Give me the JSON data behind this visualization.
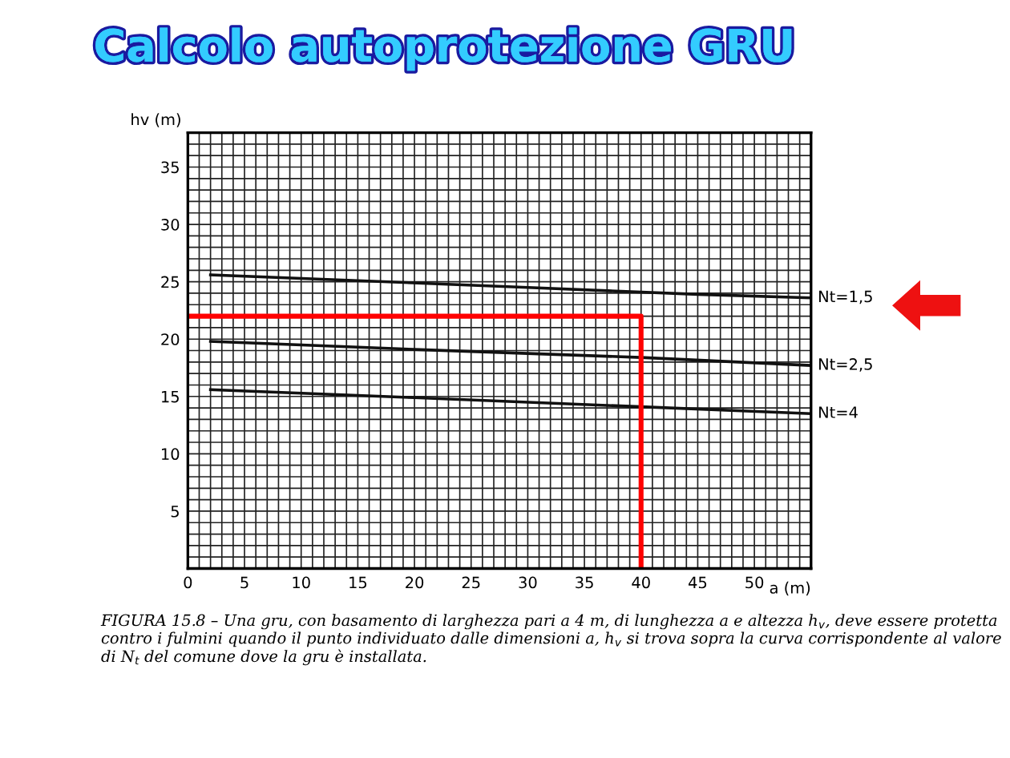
{
  "chart_data": {
    "type": "line",
    "title": "Calcolo autoprotezione GRU",
    "xlabel": "a (m)",
    "ylabel": "hv (m)",
    "series": [
      {
        "name": "Nt=1,5",
        "color": "#111111",
        "x": [
          2,
          15,
          30,
          45,
          55
        ],
        "values": [
          25.6,
          25.1,
          24.5,
          23.9,
          23.6
        ]
      },
      {
        "name": "Nt=2,5",
        "color": "#111111",
        "x": [
          2,
          20,
          40,
          55
        ],
        "values": [
          19.8,
          19.1,
          18.4,
          17.7
        ]
      },
      {
        "name": "Nt=4",
        "color": "#111111",
        "x": [
          2,
          20,
          40,
          55
        ],
        "values": [
          15.6,
          14.9,
          14.1,
          13.5
        ]
      },
      {
        "color": "#ff0000",
        "x": [
          0,
          40,
          40
        ],
        "values": [
          22,
          22,
          0
        ]
      }
    ],
    "xlim": [
      0,
      55
    ],
    "ylim": [
      0,
      38
    ],
    "xticks": [
      0,
      {
        "value": 1,
        "label": null
      },
      {
        "value": 2,
        "label": null
      },
      {
        "value": 3,
        "label": null
      },
      {
        "value": 4,
        "label": null
      },
      5,
      {
        "value": 6,
        "label": null
      },
      {
        "value": 7,
        "label": null
      },
      {
        "value": 8,
        "label": null
      },
      {
        "value": 9,
        "label": null
      },
      10,
      {
        "value": 11,
        "label": null
      },
      {
        "value": 12,
        "label": null
      },
      {
        "value": 13,
        "label": null
      },
      {
        "value": 14,
        "label": null
      },
      15,
      {
        "value": 16,
        "label": null
      },
      {
        "value": 17,
        "label": null
      },
      {
        "value": 18,
        "label": null
      },
      {
        "value": 19,
        "label": null
      },
      20,
      {
        "value": 21,
        "label": null
      },
      {
        "value": 22,
        "label": null
      },
      {
        "value": 23,
        "label": null
      },
      {
        "value": 24,
        "label": null
      },
      25,
      {
        "value": 26,
        "label": null
      },
      {
        "value": 27,
        "label": null
      },
      {
        "value": 28,
        "label": null
      },
      {
        "value": 29,
        "label": null
      },
      30,
      {
        "value": 31,
        "label": null
      },
      {
        "value": 32,
        "label": null
      },
      {
        "value": 33,
        "label": null
      },
      {
        "value": 34,
        "label": null
      },
      35,
      {
        "value": 36,
        "label": null
      },
      {
        "value": 37,
        "label": null
      },
      {
        "value": 38,
        "label": null
      },
      {
        "value": 39,
        "label": null
      },
      40,
      {
        "value": 41,
        "label": null
      },
      {
        "value": 42,
        "label": null
      },
      {
        "value": 43,
        "label": null
      },
      {
        "value": 44,
        "label": null
      },
      45,
      {
        "value": 46,
        "label": null
      },
      {
        "value": 47,
        "label": null
      },
      {
        "value": 48,
        "label": null
      },
      {
        "value": 49,
        "label": null
      },
      50,
      {
        "value": 51,
        "label": null
      },
      {
        "value": 52,
        "label": null
      },
      {
        "value": 53,
        "label": null
      },
      {
        "value": 54,
        "label": null
      }
    ],
    "yticks": [
      {
        "value": 1,
        "label": null
      },
      {
        "value": 2,
        "label": null
      },
      {
        "value": 3,
        "label": null
      },
      {
        "value": 4,
        "label": null
      },
      5,
      {
        "value": 6,
        "label": null
      },
      {
        "value": 7,
        "label": null
      },
      {
        "value": 8,
        "label": null
      },
      {
        "value": 9,
        "label": null
      },
      10,
      {
        "value": 11,
        "label": null
      },
      {
        "value": 12,
        "label": null
      },
      {
        "value": 13,
        "label": null
      },
      {
        "value": 14,
        "label": null
      },
      15,
      {
        "value": 16,
        "label": null
      },
      {
        "value": 17,
        "label": null
      },
      {
        "value": 18,
        "label": null
      },
      {
        "value": 19,
        "label": null
      },
      20,
      {
        "value": 21,
        "label": null
      },
      {
        "value": 22,
        "label": null
      },
      {
        "value": 23,
        "label": null
      },
      {
        "value": 24,
        "label": null
      },
      25,
      {
        "value": 26,
        "label": null
      },
      {
        "value": 27,
        "label": null
      },
      {
        "value": 28,
        "label": null
      },
      {
        "value": 29,
        "label": null
      },
      30,
      {
        "value": 31,
        "label": null
      },
      {
        "value": 32,
        "label": null
      },
      {
        "value": 33,
        "label": null
      },
      {
        "value": 34,
        "label": null
      },
      35,
      {
        "value": 36,
        "label": null
      },
      {
        "value": 37,
        "label": null
      }
    ],
    "grid": true,
    "annotations": [
      "FIGURA 15.8 – Una gru, con basamento di larghezza pari a 4 m, di lunghezza a e altezza h$_{v}$, deve essere protetta contro i fulmini quando il punto individuato dalle dimensioni a, h$_{v}$ si trova sopra la curva corrispondente al valore di N$_{t}$ del comune dove la gru è installata."
    ]
  }
}
